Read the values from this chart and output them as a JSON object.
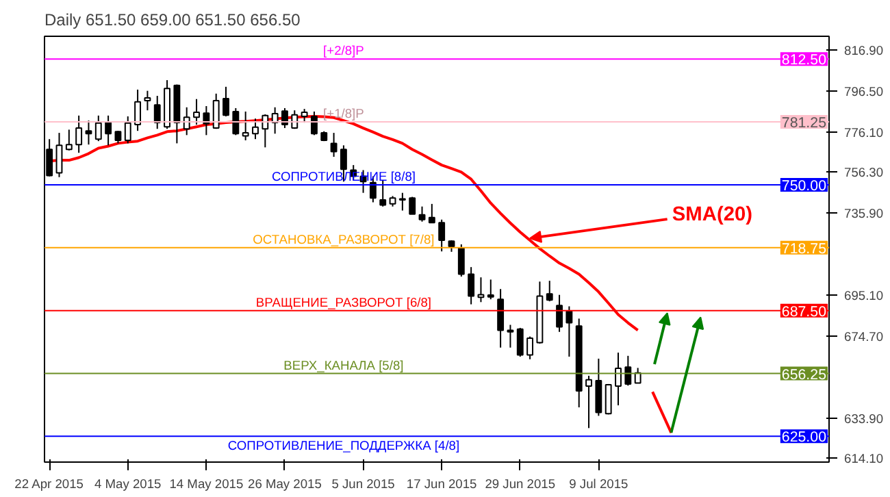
{
  "chart_data": {
    "type": "candlestick",
    "title": "Daily  651.50 659.00 651.50 656.50",
    "categories": [
      "22 Apr 2015",
      null,
      null,
      null,
      null,
      null,
      null,
      null,
      "4 May 2015",
      null,
      null,
      null,
      null,
      null,
      null,
      null,
      "14 May 2015",
      null,
      null,
      null,
      null,
      null,
      null,
      null,
      "26 May 2015",
      null,
      null,
      null,
      null,
      null,
      null,
      null,
      "5 Jun 2015",
      null,
      null,
      null,
      null,
      null,
      null,
      null,
      "17 Jun 2015",
      null,
      null,
      null,
      null,
      null,
      null,
      null,
      "29 Jun 2015",
      null,
      null,
      null,
      null,
      null,
      null,
      null,
      "9 Jul 2015",
      null,
      null,
      null,
      null
    ],
    "ohlc": [
      [
        767.6,
        772.7,
        754.2,
        754.6
      ],
      [
        755.9,
        775.8,
        753.8,
        769.6
      ],
      [
        767.6,
        777.4,
        767.1,
        770.0
      ],
      [
        770.0,
        784.4,
        765.9,
        778.2
      ],
      [
        776.8,
        781.9,
        770.0,
        775.4
      ],
      [
        772.7,
        784.4,
        771.7,
        780.7
      ],
      [
        780.9,
        784.4,
        769.6,
        775.4
      ],
      [
        776.4,
        776.8,
        770.6,
        772.1
      ],
      [
        772.1,
        784.0,
        770.6,
        780.7
      ],
      [
        779.9,
        797.3,
        776.8,
        791.2
      ],
      [
        791.8,
        796.7,
        787.0,
        793.2
      ],
      [
        789.7,
        794.2,
        777.8,
        780.9
      ],
      [
        778.8,
        802.0,
        777.8,
        797.9
      ],
      [
        799.4,
        799.8,
        770.6,
        780.9
      ],
      [
        777.8,
        788.5,
        774.7,
        783.6
      ],
      [
        783.6,
        792.6,
        779.9,
        786.0
      ],
      [
        785.6,
        789.1,
        774.7,
        780.3
      ],
      [
        778.2,
        795.3,
        777.8,
        791.8
      ],
      [
        792.8,
        798.7,
        784.0,
        784.6
      ],
      [
        786.4,
        788.1,
        774.7,
        775.4
      ],
      [
        774.3,
        786.4,
        772.1,
        775.8
      ],
      [
        775.4,
        782.9,
        772.7,
        778.6
      ],
      [
        777.8,
        785.0,
        768.6,
        784.4
      ],
      [
        780.9,
        788.5,
        775.4,
        785.4
      ],
      [
        786.6,
        788.1,
        778.2,
        779.9
      ],
      [
        778.2,
        787.0,
        777.8,
        784.8
      ],
      [
        784.0,
        787.7,
        780.9,
        786.0
      ],
      [
        784.0,
        786.4,
        774.7,
        775.4
      ],
      [
        775.8,
        776.6,
        771.7,
        772.1
      ],
      [
        770.6,
        775.8,
        763.9,
        766.5
      ],
      [
        767.6,
        769.6,
        751.6,
        757.7
      ],
      [
        757.3,
        759.8,
        752.2,
        754.2
      ],
      [
        754.2,
        757.3,
        746.0,
        751.6
      ],
      [
        751.1,
        754.2,
        741.3,
        743.4
      ],
      [
        742.5,
        752.2,
        739.2,
        739.9
      ],
      [
        740.5,
        744.4,
        739.2,
        743.4
      ],
      [
        743.0,
        746.0,
        737.2,
        742.5
      ],
      [
        743.4,
        744.0,
        735.4,
        735.4
      ],
      [
        735.1,
        739.2,
        731.7,
        732.7
      ],
      [
        733.7,
        740.5,
        731.0,
        731.2
      ],
      [
        731.2,
        732.7,
        716.9,
        722.4
      ],
      [
        722.0,
        722.4,
        716.7,
        719.4
      ],
      [
        718.7,
        720.4,
        704.4,
        705.6
      ],
      [
        705.6,
        709.1,
        690.6,
        694.7
      ],
      [
        694.1,
        704.0,
        691.7,
        695.4
      ],
      [
        695.2,
        702.9,
        693.1,
        694.3
      ],
      [
        693.1,
        698.2,
        669.1,
        677.7
      ],
      [
        677.7,
        680.4,
        669.1,
        676.9
      ],
      [
        678.3,
        678.9,
        664.6,
        665.4
      ],
      [
        665.4,
        674.6,
        663.3,
        673.8
      ],
      [
        671.6,
        701.9,
        671.1,
        694.7
      ],
      [
        695.8,
        702.3,
        692.1,
        692.7
      ],
      [
        690.0,
        695.3,
        676.9,
        679.4
      ],
      [
        687.1,
        689.6,
        664.6,
        681.4
      ],
      [
        679.8,
        683.5,
        639.4,
        647.6
      ],
      [
        650.0,
        655.1,
        629.1,
        653.1
      ],
      [
        652.7,
        663.6,
        635.2,
        636.9
      ],
      [
        636.3,
        651.0,
        635.9,
        650.6
      ],
      [
        650.0,
        666.6,
        640.4,
        658.8
      ],
      [
        659.4,
        665.0,
        650.2,
        651.0
      ],
      [
        651.5,
        659.0,
        651.5,
        656.5
      ]
    ],
    "series": [
      {
        "type": "line",
        "color": "#ff0000",
        "values": [
          761.8,
          762.2,
          762.2,
          763.5,
          765.5,
          768.2,
          769.2,
          770.6,
          771.2,
          771.7,
          773.3,
          774.7,
          776.4,
          776.8,
          777.8,
          778.8,
          779.9,
          780.3,
          780.9,
          781.3,
          781.5,
          781.9,
          782.3,
          782.7,
          783.2,
          783.6,
          783.8,
          784.0,
          783.8,
          783.4,
          781.9,
          780.3,
          778.2,
          776.2,
          774.1,
          772.5,
          770.6,
          767.6,
          765.1,
          762.4,
          759.8,
          758.1,
          756.3,
          752.8,
          747.0,
          740.9,
          735.8,
          731.0,
          726.5,
          722.4,
          718.3,
          714.6,
          711.1,
          708.5,
          705.6,
          701.3,
          696.8,
          691.2,
          685.5,
          681.4,
          677.7
        ]
      }
    ],
    "ylim": [
      612.2,
      823.8
    ],
    "yticks": [
      {
        "value": 816.9,
        "label": "816.90"
      },
      {
        "value": 796.5,
        "label": "796.50"
      },
      {
        "value": 776.1,
        "label": "776.10"
      },
      {
        "value": 756.3,
        "label": "756.30"
      },
      {
        "value": 735.9,
        "label": "735.90"
      },
      {
        "value": 695.1,
        "label": "695.10"
      },
      {
        "value": 674.7,
        "label": "674.70"
      },
      {
        "value": 633.9,
        "label": "633.90"
      },
      {
        "value": 614.1,
        "label": "614.10"
      }
    ],
    "ref_lines": [
      {
        "axis": "y",
        "value": 812.5,
        "label": "[+2/8]P",
        "color": "#ff00ff"
      },
      {
        "axis": "y",
        "value": 781.25,
        "label": "[+1/8]P",
        "color": "#ffc0cb"
      },
      {
        "axis": "y",
        "value": 750.0,
        "label": "СОПРОТИВЛЕНИЕ [8/8]",
        "color": "#0000ff"
      },
      {
        "axis": "y",
        "value": 718.75,
        "label": "ОСТАНОВКА_РАЗВОРОТ [7/8]",
        "color": "#ffa500"
      },
      {
        "axis": "y",
        "value": 687.5,
        "label": "ВРАЩЕНИЕ_РАЗВОРОТ [6/8]",
        "color": "#ff0000"
      },
      {
        "axis": "y",
        "value": 656.25,
        "label": "ВЕРХ_КАНАЛА [5/8]",
        "color": "#6b8e23"
      },
      {
        "axis": "y",
        "value": 625.0,
        "label": "СОПРОТИВЛЕНИЕ_ПОДДЕРЖКА [4/8]",
        "color": "#0000ff"
      }
    ],
    "annotations": [
      "SMA(20)",
      {
        "text": "812.50",
        "y": 812.5
      },
      {
        "text": "781.25",
        "y": 781.25
      },
      {
        "text": "750.00",
        "y": 750.0
      },
      {
        "text": "718.75",
        "y": 718.75
      },
      {
        "text": "687.50",
        "y": 687.5
      },
      {
        "text": "656.25",
        "y": 656.25
      },
      {
        "text": "625.00",
        "y": 625.0
      }
    ],
    "grid": false
  }
}
